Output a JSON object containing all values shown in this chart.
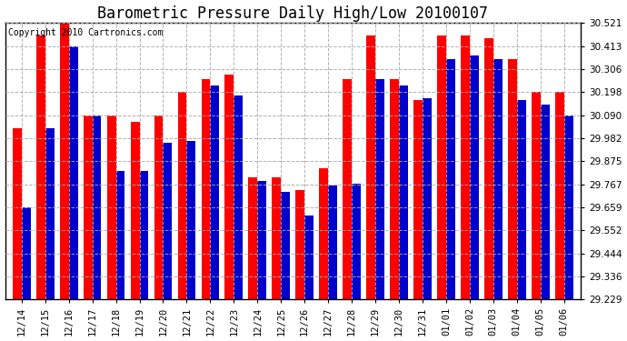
{
  "title": "Barometric Pressure Daily High/Low 20100107",
  "copyright": "Copyright 2010 Cartronics.com",
  "categories": [
    "12/14",
    "12/15",
    "12/16",
    "12/17",
    "12/18",
    "12/19",
    "12/20",
    "12/21",
    "12/22",
    "12/23",
    "12/24",
    "12/25",
    "12/26",
    "12/27",
    "12/28",
    "12/29",
    "12/30",
    "12/31",
    "01/01",
    "01/02",
    "01/03",
    "01/04",
    "01/05",
    "01/06"
  ],
  "high_values": [
    30.03,
    30.46,
    30.521,
    30.09,
    30.09,
    30.06,
    30.09,
    30.2,
    30.26,
    30.28,
    29.8,
    29.8,
    29.74,
    29.84,
    30.26,
    30.46,
    30.26,
    30.16,
    30.46,
    30.46,
    30.45,
    30.35,
    30.2,
    30.2
  ],
  "low_values": [
    29.66,
    30.03,
    30.41,
    30.09,
    29.83,
    29.83,
    29.96,
    29.97,
    30.23,
    30.18,
    29.78,
    29.73,
    29.62,
    29.76,
    29.77,
    30.26,
    30.23,
    30.17,
    30.35,
    30.37,
    30.35,
    30.16,
    30.14,
    30.09
  ],
  "high_color": "#ff0000",
  "low_color": "#0000cc",
  "ylim_min": 29.229,
  "ylim_max": 30.521,
  "yticks": [
    29.229,
    29.336,
    29.444,
    29.552,
    29.659,
    29.767,
    29.875,
    29.982,
    30.09,
    30.198,
    30.306,
    30.413,
    30.521
  ],
  "background_color": "#ffffff",
  "plot_bg_color": "#ffffff",
  "grid_color": "#aaaaaa",
  "title_fontsize": 12,
  "copyright_fontsize": 7,
  "bar_width": 0.38
}
